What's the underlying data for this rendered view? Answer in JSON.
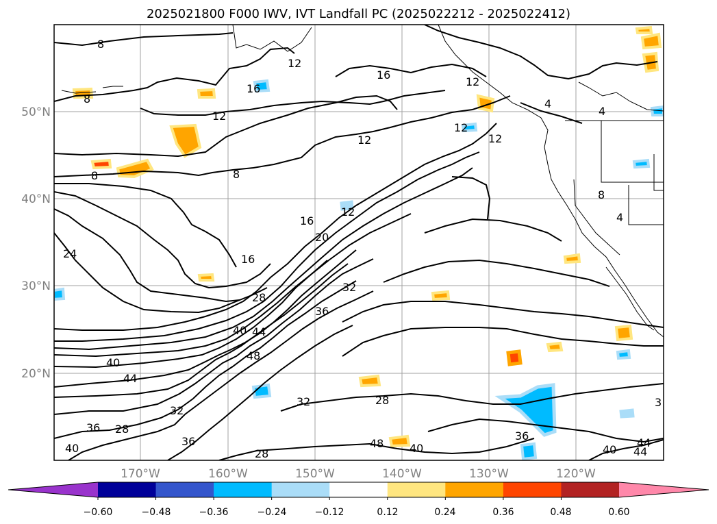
{
  "title": "2025021800 F000 IWV, IVT Landfall PC (2025022212 - 2025022412)",
  "map": {
    "lat_ticks": [
      "50°N",
      "40°N",
      "30°N",
      "20°N"
    ],
    "lon_ticks": [
      "170°W",
      "160°W",
      "150°W",
      "140°W",
      "130°W",
      "120°W"
    ]
  },
  "contour_labels": [
    "8",
    "12",
    "16",
    "12",
    "8",
    "12",
    "16",
    "8",
    "12",
    "4",
    "4",
    "12",
    "8",
    "24",
    "16",
    "16",
    "20",
    "12",
    "28",
    "32",
    "36",
    "40",
    "44",
    "48",
    "40",
    "44",
    "32",
    "36",
    "28",
    "32",
    "28",
    "48",
    "40",
    "36",
    "44",
    "40",
    "3",
    "36",
    "28",
    "8",
    "4",
    "12",
    "40",
    "44"
  ],
  "colorbar": {
    "ticks": [
      "−0.60",
      "−0.48",
      "−0.36",
      "−0.24",
      "−0.12",
      "0.12",
      "0.24",
      "0.36",
      "0.48",
      "0.60"
    ],
    "colors": [
      "#9933cc",
      "#000099",
      "#3355cc",
      "#00bbff",
      "#aaddf8",
      "#ffffff",
      "#ffe680",
      "#ffa500",
      "#ff4500",
      "#b22222",
      "#ff88aa"
    ]
  }
}
